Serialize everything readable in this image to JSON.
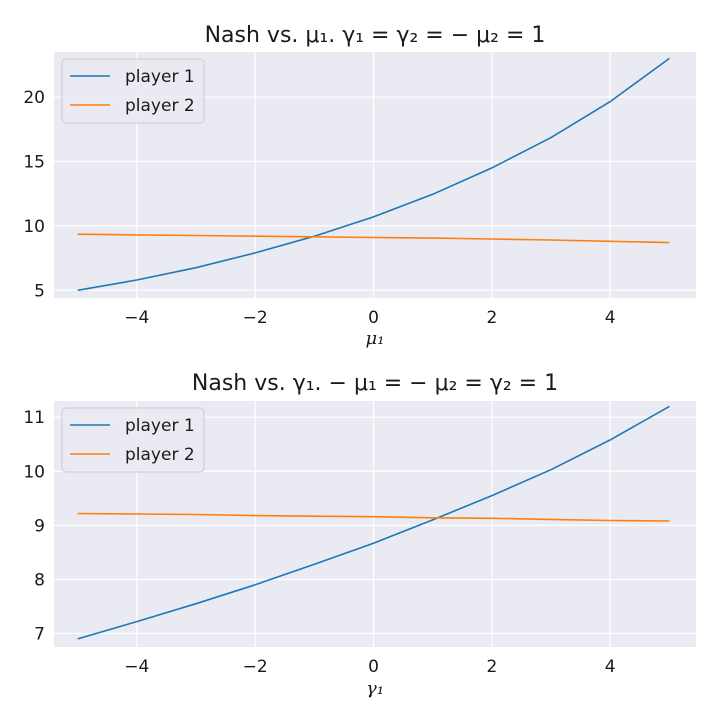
{
  "chart_data": [
    {
      "type": "line",
      "title": "Nash vs. μ₁.    γ₁ = γ₂ = − μ₂ = 1",
      "xlabel": "μ₁",
      "ylabel": "",
      "xlim": [
        -5.4,
        5.45
      ],
      "ylim": [
        4.4,
        23.5
      ],
      "xticks": [
        -4,
        -2,
        0,
        2,
        4
      ],
      "xtick_labels": [
        "−4",
        "−2",
        "0",
        "2",
        "4"
      ],
      "yticks": [
        5,
        10,
        15,
        20
      ],
      "ytick_labels": [
        "5",
        "10",
        "15",
        "20"
      ],
      "grid": true,
      "legend_position": "top-left",
      "series": [
        {
          "name": "player 1",
          "color": "#1f77b4",
          "x": [
            -5,
            -4,
            -3,
            -2,
            -1,
            0,
            1,
            2,
            3,
            4,
            5
          ],
          "y": [
            5.0,
            5.8,
            6.75,
            7.9,
            9.2,
            10.7,
            12.45,
            14.5,
            16.85,
            19.65,
            23.0
          ]
        },
        {
          "name": "player 2",
          "color": "#ff7f0e",
          "x": [
            -5,
            -4,
            -3,
            -2,
            -1,
            0,
            1,
            2,
            3,
            4,
            5
          ],
          "y": [
            9.35,
            9.3,
            9.25,
            9.2,
            9.15,
            9.1,
            9.05,
            8.98,
            8.9,
            8.8,
            8.7
          ]
        }
      ]
    },
    {
      "type": "line",
      "title": "Nash vs. γ₁.    − μ₁ = − μ₂ = γ₂ = 1",
      "xlabel": "γ₁",
      "ylabel": "",
      "xlim": [
        -5.4,
        5.45
      ],
      "ylim": [
        6.75,
        11.3
      ],
      "xticks": [
        -4,
        -2,
        0,
        2,
        4
      ],
      "xtick_labels": [
        "−4",
        "−2",
        "0",
        "2",
        "4"
      ],
      "yticks": [
        7,
        8,
        9,
        10,
        11
      ],
      "ytick_labels": [
        "7",
        "8",
        "9",
        "10",
        "11"
      ],
      "grid": true,
      "legend_position": "top-left",
      "series": [
        {
          "name": "player 1",
          "color": "#1f77b4",
          "x": [
            -5,
            -4,
            -3,
            -2,
            -1,
            0,
            1,
            2,
            3,
            4,
            5
          ],
          "y": [
            6.9,
            7.22,
            7.55,
            7.9,
            8.28,
            8.67,
            9.1,
            9.55,
            10.03,
            10.58,
            11.2
          ]
        },
        {
          "name": "player 2",
          "color": "#ff7f0e",
          "x": [
            -5,
            -4,
            -3,
            -2,
            -1,
            0,
            1,
            2,
            3,
            4,
            5
          ],
          "y": [
            9.22,
            9.21,
            9.2,
            9.18,
            9.17,
            9.16,
            9.14,
            9.13,
            9.11,
            9.09,
            9.08
          ]
        }
      ]
    }
  ]
}
